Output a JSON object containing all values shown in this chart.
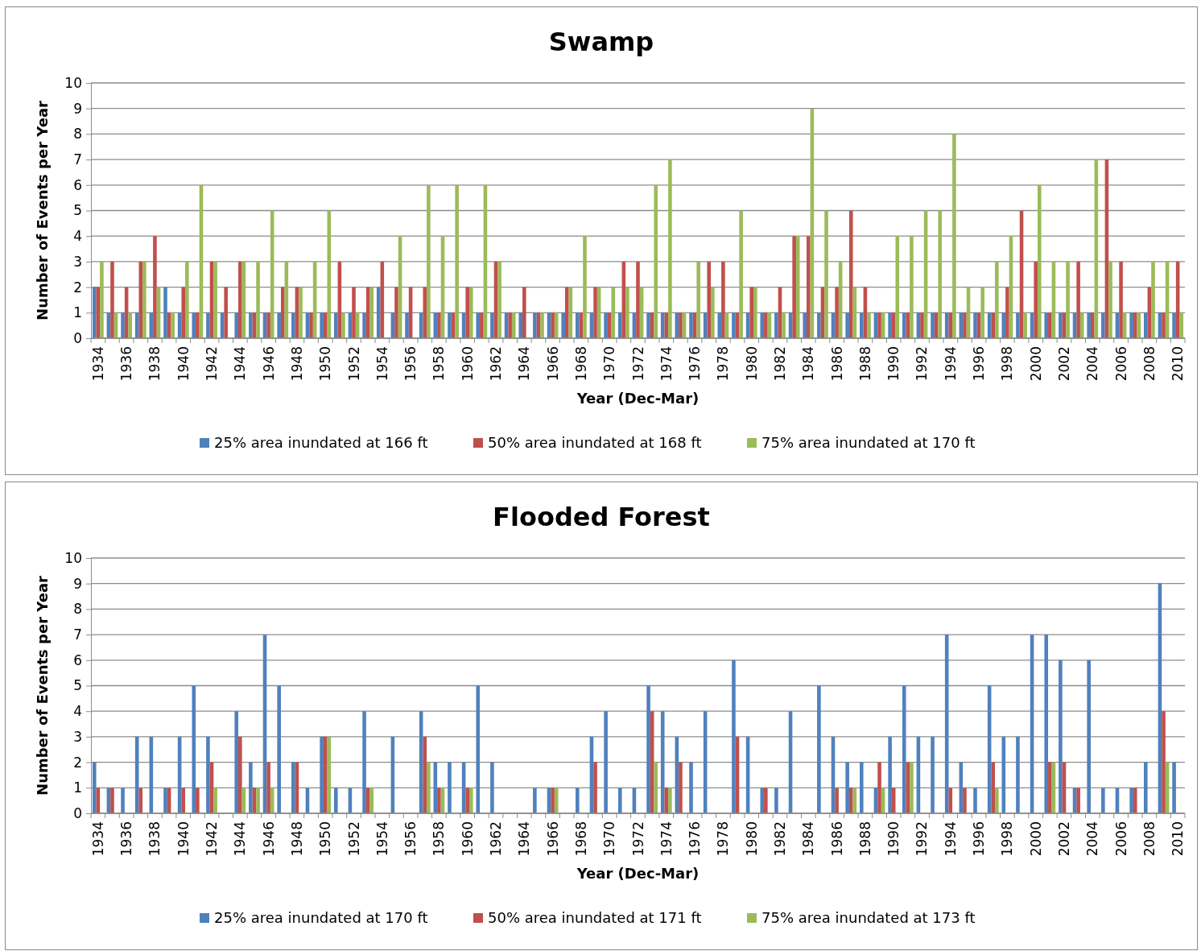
{
  "chart_data": [
    {
      "type": "bar",
      "title": "Swamp",
      "xlabel": "Year (Dec-Mar)",
      "ylabel": "Number of Events per Year",
      "ylim": [
        0,
        10
      ],
      "yticks": [
        0,
        1,
        2,
        3,
        4,
        5,
        6,
        7,
        8,
        9,
        10
      ],
      "grid": "y",
      "legend": "bottom",
      "categories": [
        "1934",
        null,
        "1936",
        null,
        "1938",
        null,
        "1940",
        null,
        "1942",
        null,
        "1944",
        null,
        "1946",
        null,
        "1948",
        null,
        "1950",
        null,
        "1952",
        null,
        "1954",
        null,
        "1956",
        null,
        "1958",
        null,
        "1960",
        null,
        "1962",
        null,
        "1964",
        null,
        "1966",
        null,
        "1968",
        null,
        "1970",
        null,
        "1972",
        null,
        "1974",
        null,
        "1976",
        null,
        "1978",
        null,
        "1980",
        null,
        "1982",
        null,
        "1984",
        null,
        "1986",
        null,
        "1988",
        null,
        "1990",
        null,
        "1992",
        null,
        "1994",
        null,
        "1996",
        null,
        "1998",
        null,
        "2000",
        null,
        "2002",
        null,
        "2004",
        null,
        "2006",
        null,
        "2008",
        null,
        "2010"
      ],
      "series": [
        {
          "name": "25% area inundated at 166 ft",
          "color": "#4f81bd",
          "values": [
            2,
            1,
            1,
            1,
            1,
            2,
            1,
            1,
            1,
            1,
            1,
            1,
            1,
            1,
            1,
            1,
            1,
            1,
            1,
            1,
            2,
            1,
            1,
            1,
            1,
            1,
            1,
            1,
            1,
            1,
            1,
            1,
            1,
            1,
            1,
            1,
            1,
            1,
            1,
            1,
            1,
            1,
            1,
            1,
            1,
            1,
            1,
            1,
            1,
            1,
            1,
            1,
            1,
            1,
            1,
            1,
            1,
            1,
            1,
            1,
            1,
            1,
            1,
            1,
            1,
            1,
            1,
            1,
            1,
            1,
            1,
            1,
            1,
            1,
            1,
            1,
            1
          ]
        },
        {
          "name": "50% area inundated at 168 ft",
          "color": "#c0504d",
          "values": [
            2,
            3,
            2,
            3,
            4,
            1,
            2,
            1,
            3,
            2,
            3,
            1,
            1,
            2,
            2,
            1,
            1,
            3,
            2,
            2,
            3,
            2,
            2,
            2,
            1,
            1,
            2,
            1,
            3,
            1,
            2,
            1,
            1,
            2,
            1,
            2,
            1,
            3,
            3,
            1,
            1,
            1,
            1,
            3,
            3,
            1,
            2,
            1,
            2,
            4,
            4,
            2,
            2,
            5,
            2,
            1,
            1,
            1,
            1,
            1,
            1,
            1,
            1,
            1,
            2,
            5,
            3,
            1,
            1,
            3,
            1,
            7,
            3,
            1,
            2,
            1,
            3
          ]
        },
        {
          "name": "75% area inundated at 170 ft",
          "color": "#9bbb59",
          "values": [
            3,
            1,
            1,
            3,
            2,
            1,
            3,
            6,
            3,
            0,
            3,
            3,
            5,
            3,
            2,
            3,
            5,
            1,
            1,
            2,
            0,
            4,
            0,
            6,
            4,
            6,
            2,
            6,
            3,
            1,
            0,
            1,
            1,
            2,
            4,
            2,
            2,
            2,
            2,
            6,
            7,
            1,
            3,
            2,
            1,
            5,
            2,
            1,
            1,
            4,
            9,
            5,
            3,
            2,
            1,
            1,
            4,
            4,
            5,
            5,
            8,
            2,
            2,
            3,
            4,
            1,
            6,
            3,
            3,
            1,
            7,
            3,
            1,
            1,
            3,
            3,
            1
          ]
        }
      ]
    },
    {
      "type": "bar",
      "title": "Flooded Forest",
      "xlabel": "Year (Dec-Mar)",
      "ylabel": "Number of Events per Year",
      "ylim": [
        0,
        10
      ],
      "yticks": [
        0,
        1,
        2,
        3,
        4,
        5,
        6,
        7,
        8,
        9,
        10
      ],
      "grid": "y",
      "legend": "bottom",
      "categories": [
        "1934",
        null,
        "1936",
        null,
        "1938",
        null,
        "1940",
        null,
        "1942",
        null,
        "1944",
        null,
        "1946",
        null,
        "1948",
        null,
        "1950",
        null,
        "1952",
        null,
        "1954",
        null,
        "1956",
        null,
        "1958",
        null,
        "1960",
        null,
        "1962",
        null,
        "1964",
        null,
        "1966",
        null,
        "1968",
        null,
        "1970",
        null,
        "1972",
        null,
        "1974",
        null,
        "1976",
        null,
        "1978",
        null,
        "1980",
        null,
        "1982",
        null,
        "1984",
        null,
        "1986",
        null,
        "1988",
        null,
        "1990",
        null,
        "1992",
        null,
        "1994",
        null,
        "1996",
        null,
        "1998",
        null,
        "2000",
        null,
        "2002",
        null,
        "2004",
        null,
        "2006",
        null,
        "2008",
        null,
        "2010"
      ],
      "series": [
        {
          "name": "25% area inundated at 170 ft",
          "color": "#4f81bd",
          "values": [
            2,
            1,
            1,
            3,
            3,
            1,
            3,
            5,
            3,
            0,
            4,
            2,
            7,
            5,
            2,
            1,
            3,
            1,
            1,
            4,
            0,
            3,
            0,
            4,
            2,
            2,
            2,
            5,
            2,
            0,
            0,
            1,
            1,
            0,
            1,
            3,
            4,
            1,
            1,
            5,
            4,
            3,
            2,
            4,
            0,
            6,
            3,
            1,
            1,
            4,
            0,
            5,
            3,
            2,
            2,
            1,
            3,
            5,
            3,
            3,
            7,
            2,
            1,
            5,
            3,
            3,
            7,
            7,
            6,
            1,
            6,
            1,
            1,
            1,
            2,
            9,
            2
          ]
        },
        {
          "name": "50% area inundated at 171 ft",
          "color": "#c0504d",
          "values": [
            1,
            1,
            0,
            1,
            0,
            1,
            1,
            1,
            2,
            0,
            3,
            1,
            2,
            0,
            2,
            0,
            3,
            0,
            0,
            1,
            0,
            0,
            0,
            3,
            1,
            0,
            1,
            0,
            0,
            0,
            0,
            0,
            1,
            0,
            0,
            2,
            0,
            0,
            0,
            4,
            1,
            2,
            0,
            0,
            0,
            3,
            0,
            1,
            0,
            0,
            0,
            0,
            1,
            1,
            0,
            2,
            1,
            2,
            0,
            0,
            1,
            1,
            0,
            2,
            0,
            0,
            0,
            2,
            2,
            1,
            0,
            0,
            0,
            1,
            0,
            4,
            0
          ]
        },
        {
          "name": "75% area inundated at 173 ft",
          "color": "#9bbb59",
          "values": [
            0,
            0,
            0,
            0,
            0,
            0,
            0,
            0,
            1,
            0,
            1,
            1,
            1,
            0,
            0,
            0,
            3,
            0,
            0,
            1,
            0,
            0,
            0,
            2,
            1,
            0,
            1,
            0,
            0,
            0,
            0,
            0,
            1,
            0,
            0,
            0,
            0,
            0,
            0,
            2,
            1,
            0,
            0,
            0,
            0,
            0,
            0,
            0,
            0,
            0,
            0,
            0,
            0,
            1,
            0,
            1,
            0,
            2,
            0,
            0,
            0,
            0,
            0,
            1,
            0,
            0,
            0,
            2,
            0,
            0,
            0,
            0,
            0,
            0,
            0,
            2,
            0
          ]
        }
      ]
    }
  ]
}
